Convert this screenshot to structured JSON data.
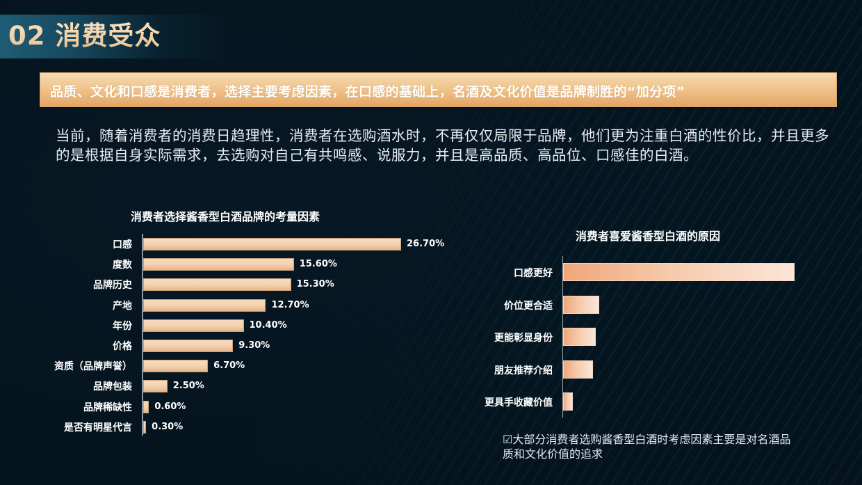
{
  "header": {
    "title": "02 消费受众"
  },
  "banner": {
    "text": "品质、文化和口感是消费者，选择主要考虑因素，在口感的基础上，名酒及文化价值是品牌制胜的“加分项”"
  },
  "intro": {
    "text": "当前，随着消费者的消费日趋理性，消费者在选购酒水时，不再仅仅局限于品牌，他们更为注重白酒的性价比，并且更多的是根据自身实际需求，去选购对自己有共鸣感、说服力，并且是高品质、高品位、口感佳的白酒。"
  },
  "note": {
    "icon": "checkbox-icon",
    "checkbox_glyph": "☑",
    "text": "大部分消费者选购酱香型白酒时考虑因素主要是对名酒品质和文化价值的追求"
  },
  "colors": {
    "background": "#061824",
    "title_gold": "#f3d2a8",
    "banner_top": "#f6dbb0",
    "banner_bottom": "#e3a566",
    "bar_left": "#f4d2b0",
    "bar_right_start": "#efa679",
    "bar_right_end": "#fbe6d8"
  },
  "chart_data": [
    {
      "type": "bar",
      "orientation": "horizontal",
      "title": "消费者选择酱香型白酒品牌的考量因素",
      "categories": [
        "口感",
        "度数",
        "品牌历史",
        "产地",
        "年份",
        "价格",
        "资质（品牌声誉）",
        "品牌包装",
        "品牌稀缺性",
        "是否有明星代言"
      ],
      "values": [
        26.7,
        15.6,
        15.3,
        12.7,
        10.4,
        9.3,
        6.7,
        2.5,
        0.6,
        0.3
      ],
      "value_labels": [
        "26.70%",
        "15.60%",
        "15.30%",
        "12.70%",
        "10.40%",
        "9.30%",
        "6.70%",
        "2.50%",
        "0.60%",
        "0.30%"
      ],
      "unit": "%",
      "xlabel": "",
      "ylabel": "",
      "xlim": [
        0,
        26.7
      ],
      "grid": false,
      "legend": "none"
    },
    {
      "type": "bar",
      "orientation": "horizontal",
      "title": "消费者喜爱酱香型白酒的原因",
      "categories": [
        "口感更好",
        "价位更合适",
        "更能彰显身份",
        "朋友推荐介绍",
        "更具手收藏价值"
      ],
      "values": [
        100,
        15.6,
        14.2,
        12.9,
        4.2
      ],
      "values_note": "relative bar lengths estimated from pixels (no data labels shown); longest bar normalized to 100",
      "xlabel": "",
      "ylabel": "",
      "grid": false,
      "legend": "none"
    }
  ]
}
